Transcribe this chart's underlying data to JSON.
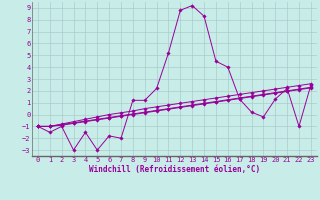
{
  "xlabel": "Windchill (Refroidissement éolien,°C)",
  "bg_color": "#c8ece8",
  "line_color": "#990099",
  "grid_color": "#aacccc",
  "xlim": [
    -0.5,
    23.5
  ],
  "ylim": [
    -3.5,
    9.5
  ],
  "xticks": [
    0,
    1,
    2,
    3,
    4,
    5,
    6,
    7,
    8,
    9,
    10,
    11,
    12,
    13,
    14,
    15,
    16,
    17,
    18,
    19,
    20,
    21,
    22,
    23
  ],
  "yticks": [
    -3,
    -2,
    -1,
    0,
    1,
    2,
    3,
    4,
    5,
    6,
    7,
    8,
    9
  ],
  "line1_x": [
    0,
    1,
    2,
    3,
    4,
    5,
    6,
    7,
    8,
    9,
    10,
    11,
    12,
    13,
    14,
    15,
    16,
    17,
    18,
    19,
    20,
    21,
    22,
    23
  ],
  "line1_y": [
    -1.0,
    -1.5,
    -1.0,
    -3.0,
    -1.5,
    -3.0,
    -1.8,
    -2.0,
    1.2,
    1.2,
    2.2,
    5.2,
    8.8,
    9.2,
    8.3,
    4.5,
    4.0,
    1.3,
    0.2,
    -0.2,
    1.3,
    2.2,
    -1.0,
    2.5
  ],
  "line2_x": [
    0,
    1,
    2,
    3,
    4,
    5,
    6,
    7,
    8,
    9,
    10,
    11,
    12,
    13,
    14,
    15,
    16,
    17,
    18,
    19,
    20,
    21,
    22,
    23
  ],
  "line2_y": [
    -1.0,
    -1.0,
    -0.85,
    -0.7,
    -0.55,
    -0.4,
    -0.25,
    -0.1,
    0.05,
    0.2,
    0.35,
    0.5,
    0.65,
    0.8,
    0.95,
    1.1,
    1.25,
    1.4,
    1.55,
    1.7,
    1.85,
    2.0,
    2.15,
    2.3
  ],
  "line3_x": [
    0,
    1,
    2,
    3,
    4,
    5,
    6,
    7,
    8,
    9,
    10,
    11,
    12,
    13,
    14,
    15,
    16,
    17,
    18,
    19,
    20,
    21,
    22,
    23
  ],
  "line3_y": [
    -1.0,
    -1.0,
    -0.9,
    -0.75,
    -0.6,
    -0.45,
    -0.3,
    -0.15,
    0.0,
    0.15,
    0.3,
    0.45,
    0.6,
    0.75,
    0.9,
    1.05,
    1.2,
    1.35,
    1.5,
    1.65,
    1.8,
    1.95,
    2.1,
    2.25
  ],
  "line4_x": [
    0,
    1,
    2,
    3,
    4,
    5,
    6,
    7,
    8,
    9,
    10,
    11,
    12,
    13,
    14,
    15,
    16,
    17,
    18,
    19,
    20,
    21,
    22,
    23
  ],
  "line4_y": [
    -1.0,
    -1.0,
    -0.8,
    -0.6,
    -0.4,
    -0.2,
    0.0,
    0.15,
    0.3,
    0.5,
    0.65,
    0.8,
    0.95,
    1.1,
    1.25,
    1.4,
    1.55,
    1.7,
    1.85,
    2.0,
    2.15,
    2.3,
    2.45,
    2.6
  ]
}
